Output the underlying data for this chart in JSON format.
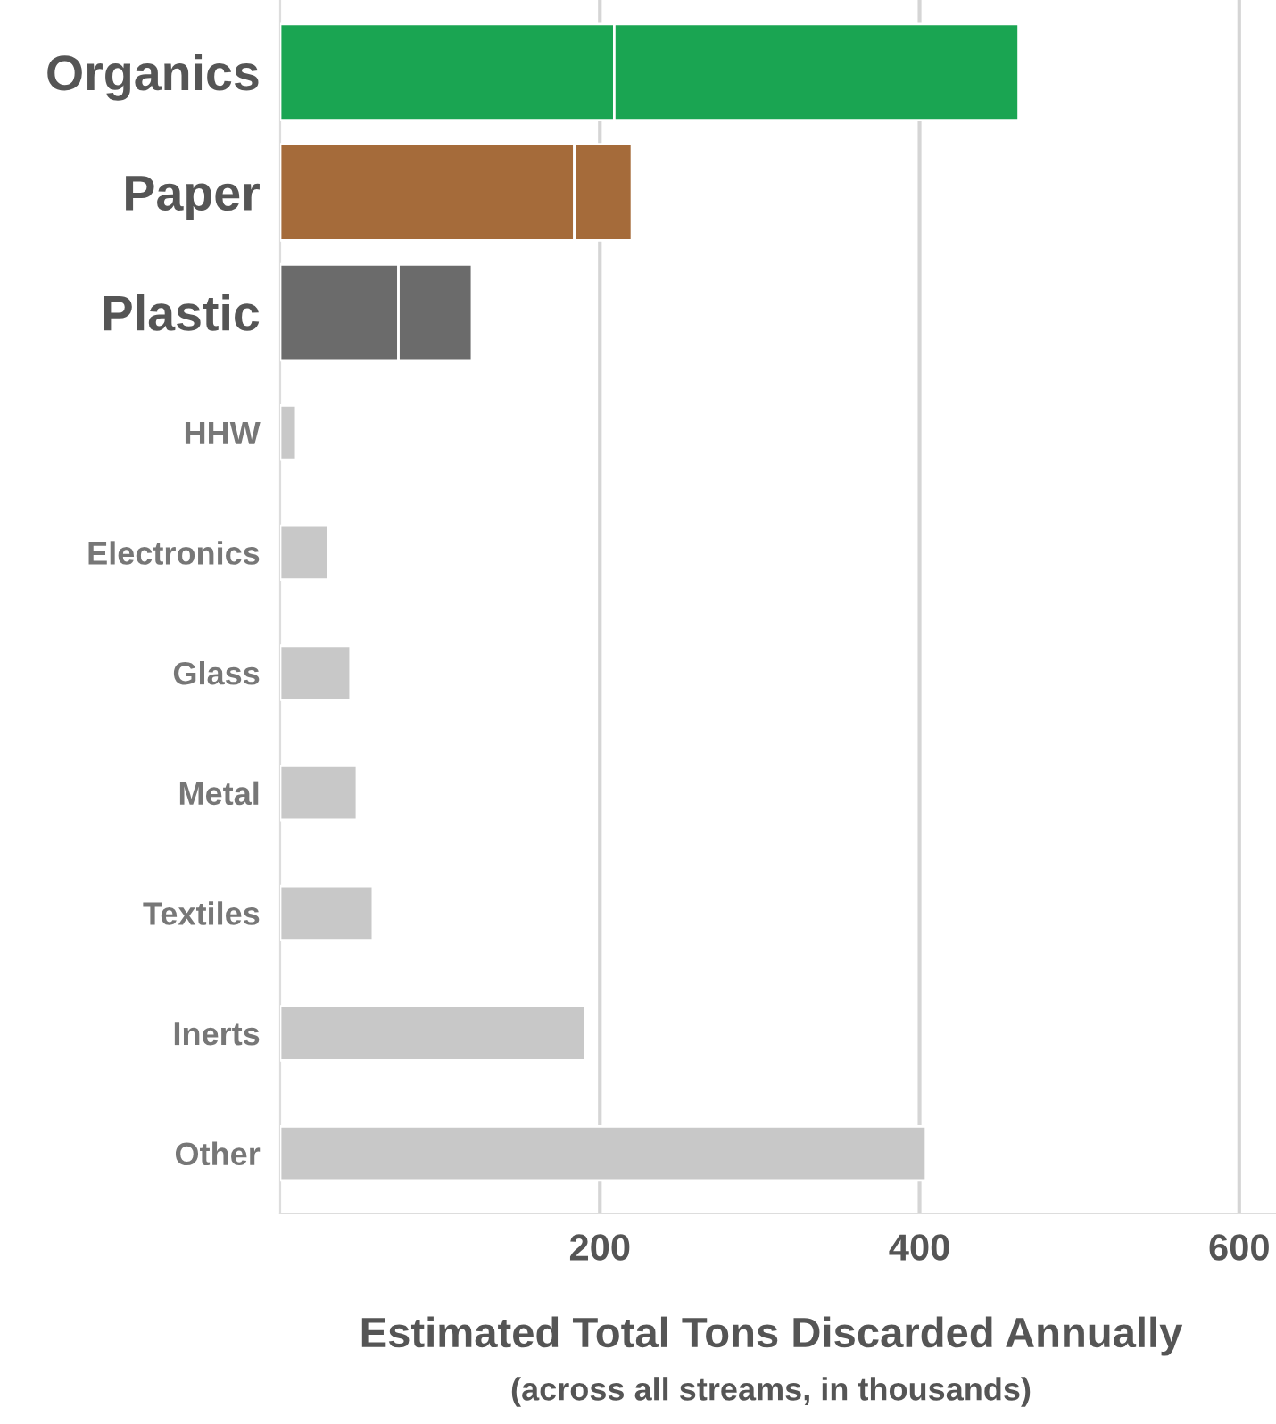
{
  "chart_data": {
    "type": "bar",
    "orientation": "horizontal",
    "stacked": true,
    "categories": [
      "Organics",
      "Paper",
      "Plastic",
      "HHW",
      "Electronics",
      "Glass",
      "Metal",
      "Textiles",
      "Inerts",
      "Other"
    ],
    "series": [
      {
        "colors": [
          "#1aa552",
          "#a56b3a",
          "#6b6b6b",
          "#c8c8c8",
          "#c8c8c8",
          "#c8c8c8",
          "#c8c8c8",
          "#c8c8c8",
          "#c8c8c8",
          "#c8c8c8"
        ],
        "values": [
          209,
          null,
          null,
          null,
          null,
          null,
          null,
          null,
          null,
          null
        ]
      },
      {
        "colors": [
          "#1aa552",
          "#a56b3a",
          "#6b6b6b",
          "#c8c8c8",
          "#c8c8c8",
          "#c8c8c8",
          "#c8c8c8",
          "#c8c8c8",
          "#c8c8c8",
          "#c8c8c8"
        ],
        "values": [
          253,
          184,
          74,
          10,
          30,
          44,
          48,
          58,
          191,
          404
        ]
      },
      {
        "colors": [
          "#1aa552",
          "#a56b3a",
          "#6b6b6b",
          "#c8c8c8",
          "#c8c8c8",
          "#c8c8c8",
          "#c8c8c8",
          "#c8c8c8",
          "#c8c8c8",
          "#c8c8c8"
        ],
        "values": [
          null,
          36,
          46,
          null,
          null,
          null,
          null,
          null,
          null,
          null
        ]
      }
    ],
    "xlim": [
      0,
      623
    ],
    "xticks": [
      200,
      400,
      600
    ],
    "grid": "x",
    "xlabel": "Estimated Total Tons Discarded Annually",
    "annotations": [
      "(across all streams, in thousands)"
    ]
  }
}
